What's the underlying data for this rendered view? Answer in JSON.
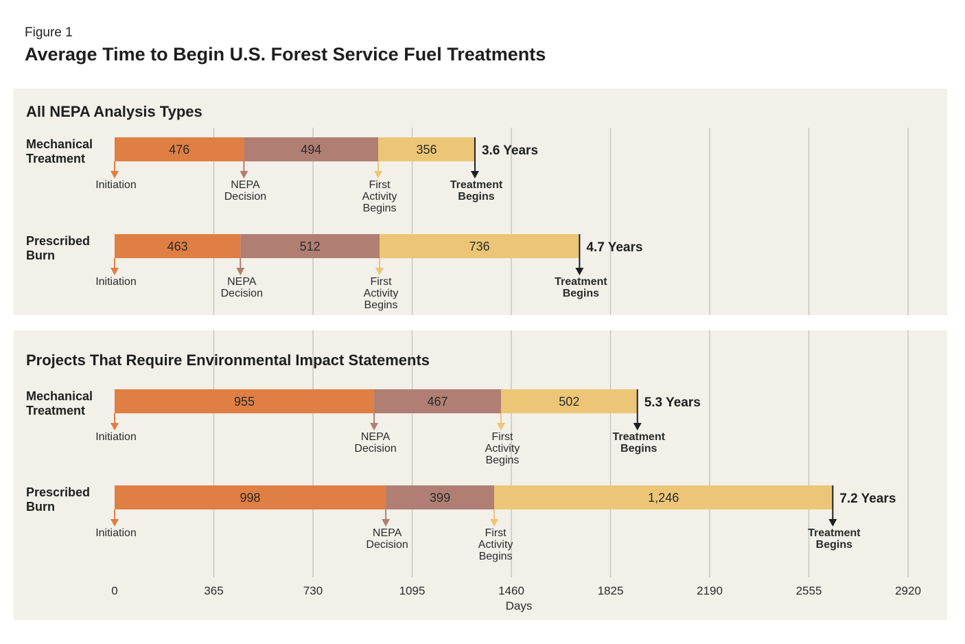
{
  "figure": {
    "label": "Figure 1",
    "title": "Average Time to Begin U.S. Forest Service Fuel Treatments"
  },
  "colors": {
    "panel_bg": "#f2f0e9",
    "grid": "#c8c6c0",
    "initiation": "#df7f43",
    "nepa": "#b07e72",
    "first_activity": "#ecc676",
    "treatment": "#1e1e1e"
  },
  "chart_data": {
    "type": "bar",
    "orientation": "horizontal",
    "stacked": true,
    "xlabel": "Days",
    "xlim": [
      0,
      2920
    ],
    "xticks": [
      0,
      365,
      730,
      1095,
      1460,
      1825,
      2190,
      2555,
      2920
    ],
    "xtick_labels": [
      "0",
      "365",
      "730",
      "1095",
      "1460",
      "1825",
      "2190",
      "2555",
      "2920"
    ],
    "grid": true,
    "stage_markers": [
      "Initiation",
      "NEPA Decision",
      "First Activity Begins",
      "Treatment Begins"
    ],
    "panels": [
      {
        "title": "All NEPA Analysis Types",
        "rows": [
          {
            "name": "Mechanical Treatment",
            "segments": [
              476,
              494,
              356
            ],
            "segment_labels": [
              "476",
              "494",
              "356"
            ],
            "total_label": "3.6 Years"
          },
          {
            "name": "Prescribed Burn",
            "segments": [
              463,
              512,
              736
            ],
            "segment_labels": [
              "463",
              "512",
              "736"
            ],
            "total_label": "4.7 Years"
          }
        ]
      },
      {
        "title": "Projects That Require Environmental Impact Statements",
        "rows": [
          {
            "name": "Mechanical Treatment",
            "segments": [
              955,
              467,
              502
            ],
            "segment_labels": [
              "955",
              "467",
              "502"
            ],
            "total_label": "5.3 Years"
          },
          {
            "name": "Prescribed Burn",
            "segments": [
              998,
              399,
              1246
            ],
            "segment_labels": [
              "998",
              "399",
              "1,246"
            ],
            "total_label": "7.2 Years"
          }
        ]
      }
    ]
  }
}
